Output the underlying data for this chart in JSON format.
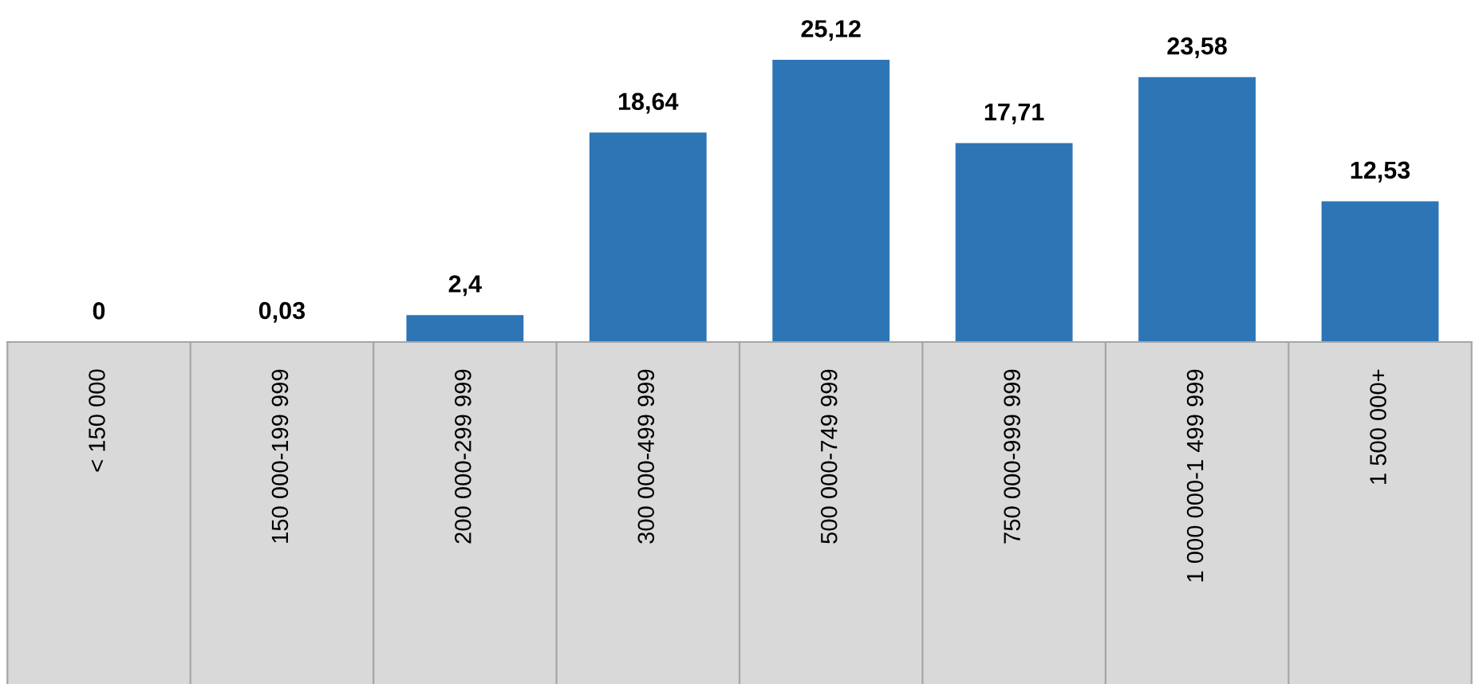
{
  "chart_data": {
    "type": "bar",
    "categories": [
      "< 150 000",
      "150 000-199 999",
      "200 000-299 999",
      "300 000-499 999",
      "500 000-749 999",
      "750 000-999 999",
      "1 000 000-1 499 999",
      "1 500 000+"
    ],
    "values": [
      0,
      0.03,
      2.4,
      18.64,
      25.12,
      17.71,
      23.58,
      12.53
    ],
    "value_labels": [
      "0",
      "0,03",
      "2,4",
      "18,64",
      "25,12",
      "17,71",
      "23,58",
      "12,53"
    ],
    "color": "#2e75b6",
    "grid": false,
    "legend": false
  }
}
